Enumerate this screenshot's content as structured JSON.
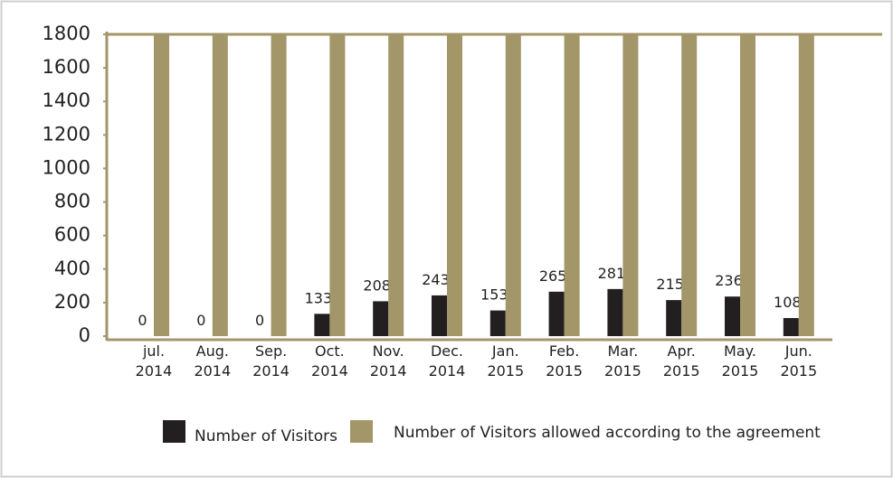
{
  "chart_data": {
    "type": "bar",
    "categories": [
      "jul. 2014",
      "Aug. 2014",
      "Sep. 2014",
      "Oct. 2014",
      "Nov. 2014",
      "Dec. 2014",
      "Jan. 2015",
      "Feb. 2015",
      "Mar. 2015",
      "Apr. 2015",
      "May. 2015",
      "Jun. 2015"
    ],
    "series": [
      {
        "name": "Number of Visitors",
        "color": "#231f20",
        "values": [
          0,
          0,
          0,
          133,
          208,
          243,
          153,
          265,
          281,
          215,
          236,
          108
        ]
      },
      {
        "name": "Number of Visitors allowed according to the agreement",
        "color": "#a39669",
        "values": [
          1800,
          1800,
          1800,
          1800,
          1800,
          1800,
          1800,
          1800,
          1800,
          1800,
          1800,
          1800
        ]
      }
    ],
    "ylim": [
      0,
      1800
    ],
    "yticks": [
      0,
      200,
      400,
      600,
      800,
      1000,
      1200,
      1400,
      1600,
      1800
    ]
  }
}
